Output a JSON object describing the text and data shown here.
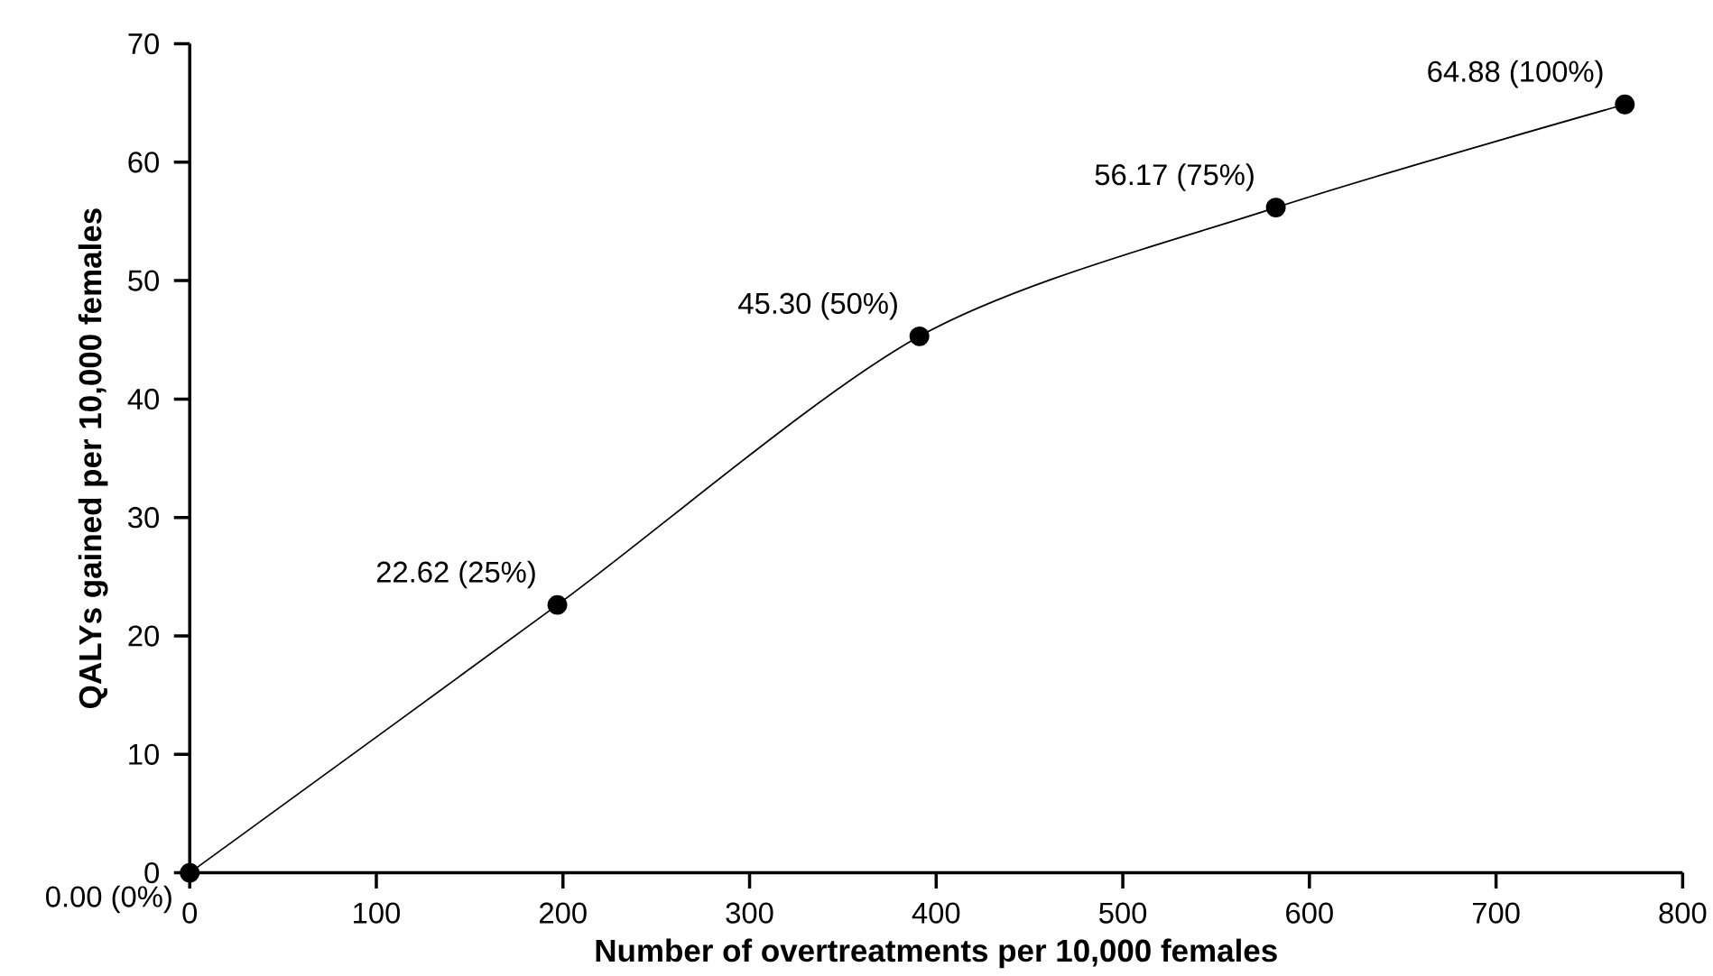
{
  "chart_data": {
    "type": "line",
    "xlabel": "Number of overtreatments per 10,000 females",
    "ylabel": "QALYs gained per 10,000 females",
    "x": [
      0,
      197,
      391,
      582,
      769
    ],
    "series": [
      {
        "color": "#000000",
        "values": [
          0,
          22.62,
          45.3,
          56.17,
          64.88
        ],
        "value_labels": [
          "0.00 (0%)",
          "22.62 (25%)",
          "45.30 (50%)",
          "56.17 (75%)",
          "64.88 (100%)"
        ]
      }
    ],
    "xlim": [
      0,
      800
    ],
    "ylim": [
      0,
      70
    ],
    "xticks": [
      0,
      100,
      200,
      300,
      400,
      500,
      600,
      700,
      800
    ],
    "yticks": [
      0,
      10,
      20,
      30,
      40,
      50,
      60,
      70
    ],
    "grid": false,
    "legend": false,
    "marker": "circle",
    "line_style": "solid"
  }
}
